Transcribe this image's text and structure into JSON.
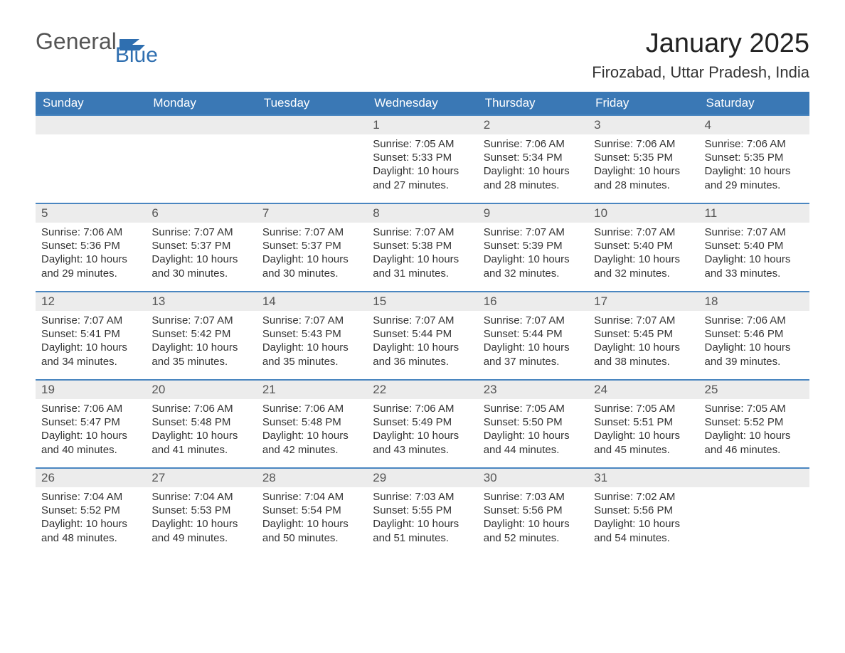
{
  "logo": {
    "text1": "General",
    "text2": "Blue",
    "brand_color": "#2f6fb0"
  },
  "title": "January 2025",
  "location": "Firozabad, Uttar Pradesh, India",
  "header_bg": "#3a78b5",
  "header_fg": "#ffffff",
  "row_border": "#4a86c0",
  "daynum_bg": "#ececec",
  "text_color": "#333333",
  "columns": [
    "Sunday",
    "Monday",
    "Tuesday",
    "Wednesday",
    "Thursday",
    "Friday",
    "Saturday"
  ],
  "weeks": [
    [
      null,
      null,
      null,
      {
        "n": "1",
        "sunrise": "7:05 AM",
        "sunset": "5:33 PM",
        "daylight": "10 hours and 27 minutes."
      },
      {
        "n": "2",
        "sunrise": "7:06 AM",
        "sunset": "5:34 PM",
        "daylight": "10 hours and 28 minutes."
      },
      {
        "n": "3",
        "sunrise": "7:06 AM",
        "sunset": "5:35 PM",
        "daylight": "10 hours and 28 minutes."
      },
      {
        "n": "4",
        "sunrise": "7:06 AM",
        "sunset": "5:35 PM",
        "daylight": "10 hours and 29 minutes."
      }
    ],
    [
      {
        "n": "5",
        "sunrise": "7:06 AM",
        "sunset": "5:36 PM",
        "daylight": "10 hours and 29 minutes."
      },
      {
        "n": "6",
        "sunrise": "7:07 AM",
        "sunset": "5:37 PM",
        "daylight": "10 hours and 30 minutes."
      },
      {
        "n": "7",
        "sunrise": "7:07 AM",
        "sunset": "5:37 PM",
        "daylight": "10 hours and 30 minutes."
      },
      {
        "n": "8",
        "sunrise": "7:07 AM",
        "sunset": "5:38 PM",
        "daylight": "10 hours and 31 minutes."
      },
      {
        "n": "9",
        "sunrise": "7:07 AM",
        "sunset": "5:39 PM",
        "daylight": "10 hours and 32 minutes."
      },
      {
        "n": "10",
        "sunrise": "7:07 AM",
        "sunset": "5:40 PM",
        "daylight": "10 hours and 32 minutes."
      },
      {
        "n": "11",
        "sunrise": "7:07 AM",
        "sunset": "5:40 PM",
        "daylight": "10 hours and 33 minutes."
      }
    ],
    [
      {
        "n": "12",
        "sunrise": "7:07 AM",
        "sunset": "5:41 PM",
        "daylight": "10 hours and 34 minutes."
      },
      {
        "n": "13",
        "sunrise": "7:07 AM",
        "sunset": "5:42 PM",
        "daylight": "10 hours and 35 minutes."
      },
      {
        "n": "14",
        "sunrise": "7:07 AM",
        "sunset": "5:43 PM",
        "daylight": "10 hours and 35 minutes."
      },
      {
        "n": "15",
        "sunrise": "7:07 AM",
        "sunset": "5:44 PM",
        "daylight": "10 hours and 36 minutes."
      },
      {
        "n": "16",
        "sunrise": "7:07 AM",
        "sunset": "5:44 PM",
        "daylight": "10 hours and 37 minutes."
      },
      {
        "n": "17",
        "sunrise": "7:07 AM",
        "sunset": "5:45 PM",
        "daylight": "10 hours and 38 minutes."
      },
      {
        "n": "18",
        "sunrise": "7:06 AM",
        "sunset": "5:46 PM",
        "daylight": "10 hours and 39 minutes."
      }
    ],
    [
      {
        "n": "19",
        "sunrise": "7:06 AM",
        "sunset": "5:47 PM",
        "daylight": "10 hours and 40 minutes."
      },
      {
        "n": "20",
        "sunrise": "7:06 AM",
        "sunset": "5:48 PM",
        "daylight": "10 hours and 41 minutes."
      },
      {
        "n": "21",
        "sunrise": "7:06 AM",
        "sunset": "5:48 PM",
        "daylight": "10 hours and 42 minutes."
      },
      {
        "n": "22",
        "sunrise": "7:06 AM",
        "sunset": "5:49 PM",
        "daylight": "10 hours and 43 minutes."
      },
      {
        "n": "23",
        "sunrise": "7:05 AM",
        "sunset": "5:50 PM",
        "daylight": "10 hours and 44 minutes."
      },
      {
        "n": "24",
        "sunrise": "7:05 AM",
        "sunset": "5:51 PM",
        "daylight": "10 hours and 45 minutes."
      },
      {
        "n": "25",
        "sunrise": "7:05 AM",
        "sunset": "5:52 PM",
        "daylight": "10 hours and 46 minutes."
      }
    ],
    [
      {
        "n": "26",
        "sunrise": "7:04 AM",
        "sunset": "5:52 PM",
        "daylight": "10 hours and 48 minutes."
      },
      {
        "n": "27",
        "sunrise": "7:04 AM",
        "sunset": "5:53 PM",
        "daylight": "10 hours and 49 minutes."
      },
      {
        "n": "28",
        "sunrise": "7:04 AM",
        "sunset": "5:54 PM",
        "daylight": "10 hours and 50 minutes."
      },
      {
        "n": "29",
        "sunrise": "7:03 AM",
        "sunset": "5:55 PM",
        "daylight": "10 hours and 51 minutes."
      },
      {
        "n": "30",
        "sunrise": "7:03 AM",
        "sunset": "5:56 PM",
        "daylight": "10 hours and 52 minutes."
      },
      {
        "n": "31",
        "sunrise": "7:02 AM",
        "sunset": "5:56 PM",
        "daylight": "10 hours and 54 minutes."
      },
      null
    ]
  ],
  "labels": {
    "sunrise": "Sunrise: ",
    "sunset": "Sunset: ",
    "daylight": "Daylight: "
  }
}
